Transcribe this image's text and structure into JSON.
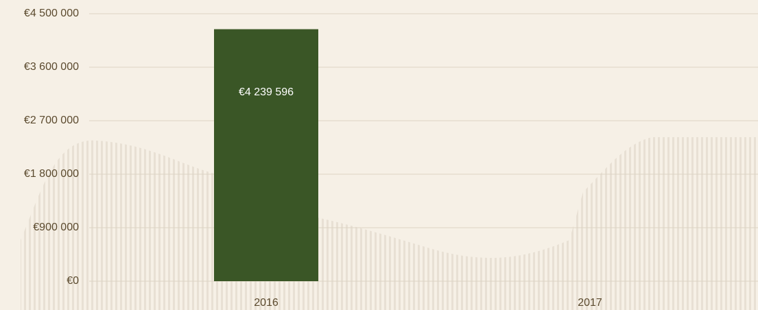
{
  "chart_data": {
    "type": "bar",
    "categories": [
      "2016",
      "2017"
    ],
    "values": [
      4239596,
      null
    ],
    "value_labels": [
      "€4 239 596",
      null
    ],
    "color": "#3a5626",
    "ylim": [
      0,
      4500000
    ],
    "yticks": [
      {
        "value": 0,
        "label": "€0"
      },
      {
        "value": 900000,
        "label": "€900 000"
      },
      {
        "value": 1800000,
        "label": "€1 800 000"
      },
      {
        "value": 2700000,
        "label": "€2 700 000"
      },
      {
        "value": 3600000,
        "label": "€3 600 000"
      },
      {
        "value": 4500000,
        "label": "€4 500 000"
      }
    ],
    "grid": true
  }
}
